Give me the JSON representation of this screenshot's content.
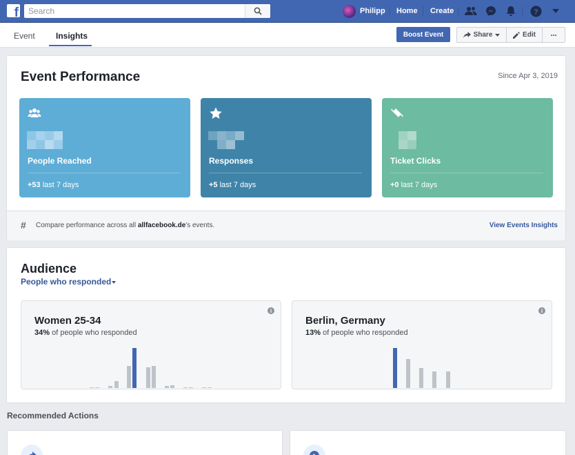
{
  "topbar": {
    "search_placeholder": "Search",
    "profile_name": "Philipp",
    "home_label": "Home",
    "create_label": "Create",
    "colors": {
      "bar": "#4267b2"
    }
  },
  "subnav": {
    "tabs": [
      {
        "label": "Event",
        "active": false
      },
      {
        "label": "Insights",
        "active": true
      }
    ],
    "boost_label": "Boost Event",
    "share_label": "Share",
    "edit_label": "Edit",
    "more_label": "···"
  },
  "performance": {
    "title": "Event Performance",
    "since": "Since Apr 3, 2019",
    "tiles": [
      {
        "label": "People Reached",
        "delta_value": "+53",
        "delta_suffix": "last 7 days",
        "color": "#5eadd6",
        "icon": "people-icon"
      },
      {
        "label": "Responses",
        "delta_value": "+5",
        "delta_suffix": "last 7 days",
        "color": "#3f84a8",
        "icon": "star-icon"
      },
      {
        "label": "Ticket Clicks",
        "delta_value": "+0",
        "delta_suffix": "last 7 days",
        "color": "#6dbba1",
        "icon": "ticket-icon"
      }
    ],
    "compare_prefix": "Compare performance across all ",
    "compare_page": "allfacebook.de",
    "compare_suffix": "'s events.",
    "compare_link": "View Events Insights"
  },
  "audience": {
    "title": "Audience",
    "filter_label": "People who responded",
    "cards": [
      {
        "title": "Women 25-34",
        "percent": "34%",
        "percent_suffix": "of people who responded"
      },
      {
        "title": "Berlin, Germany",
        "percent": "13%",
        "percent_suffix": "of people who responded"
      }
    ]
  },
  "recommended": {
    "title": "Recommended Actions"
  }
}
